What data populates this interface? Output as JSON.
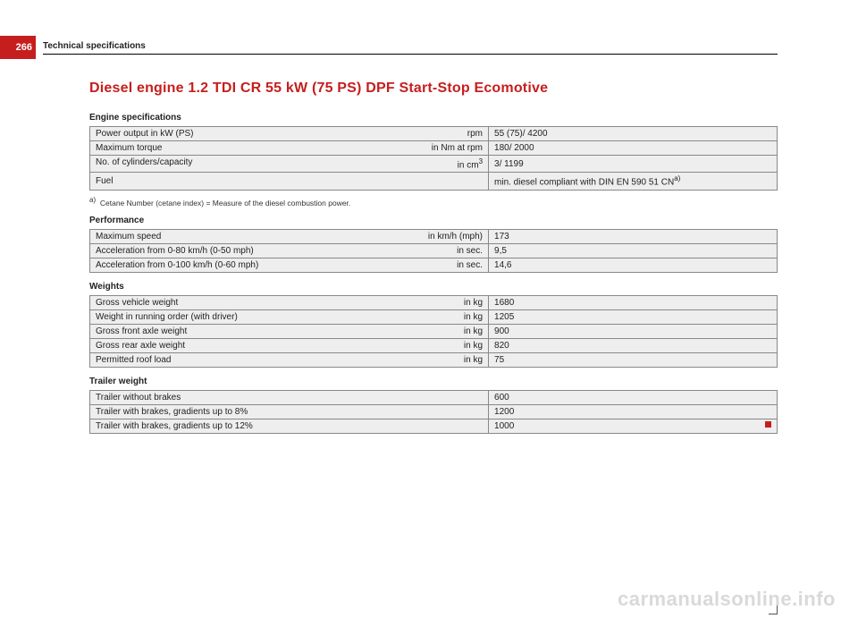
{
  "page_number": "266",
  "header": "Technical specifications",
  "title": "Diesel engine 1.2 TDI CR 55 kW (75 PS) DPF Start-Stop Ecomotive",
  "sections": {
    "engine": {
      "label": "Engine specifications",
      "rows": [
        {
          "label": "Power output in kW (PS)",
          "unit": "rpm",
          "value": "55 (75)/ 4200"
        },
        {
          "label": "Maximum torque",
          "unit": "in Nm at rpm",
          "value": "180/ 2000"
        },
        {
          "label": "No. of cylinders/capacity",
          "unit": "in cm",
          "unit_sup": "3",
          "value": "3/ 1199"
        },
        {
          "label": "Fuel",
          "unit": "",
          "value": "min. diesel compliant with DIN EN 590 51 CN",
          "value_sup": "a)"
        }
      ],
      "footnote_marker": "a)",
      "footnote": "Cetane Number (cetane index) = Measure of the diesel combustion power."
    },
    "performance": {
      "label": "Performance",
      "rows": [
        {
          "label": "Maximum speed",
          "unit": "in km/h (mph)",
          "value": "173"
        },
        {
          "label": "Acceleration from 0-80 km/h (0-50 mph)",
          "unit": "in sec.",
          "value": "9,5"
        },
        {
          "label": "Acceleration from 0-100 km/h (0-60 mph)",
          "unit": "in sec.",
          "value": "14,6"
        }
      ]
    },
    "weights": {
      "label": "Weights",
      "rows": [
        {
          "label": "Gross vehicle weight",
          "unit": "in kg",
          "value": "1680"
        },
        {
          "label": "Weight in running order (with driver)",
          "unit": "in kg",
          "value": "1205"
        },
        {
          "label": "Gross front axle weight",
          "unit": "in kg",
          "value": "900"
        },
        {
          "label": "Gross rear axle weight",
          "unit": "in kg",
          "value": "820"
        },
        {
          "label": "Permitted roof load",
          "unit": "in kg",
          "value": "75"
        }
      ]
    },
    "trailer": {
      "label": "Trailer weight",
      "rows": [
        {
          "label": "Trailer without brakes",
          "unit": "",
          "value": "600"
        },
        {
          "label": "Trailer with brakes, gradients up to 8%",
          "unit": "",
          "value": "1200"
        },
        {
          "label": "Trailer with brakes, gradients up to 12%",
          "unit": "",
          "value": "1000"
        }
      ]
    }
  },
  "watermark": "carmanualsonline.info"
}
